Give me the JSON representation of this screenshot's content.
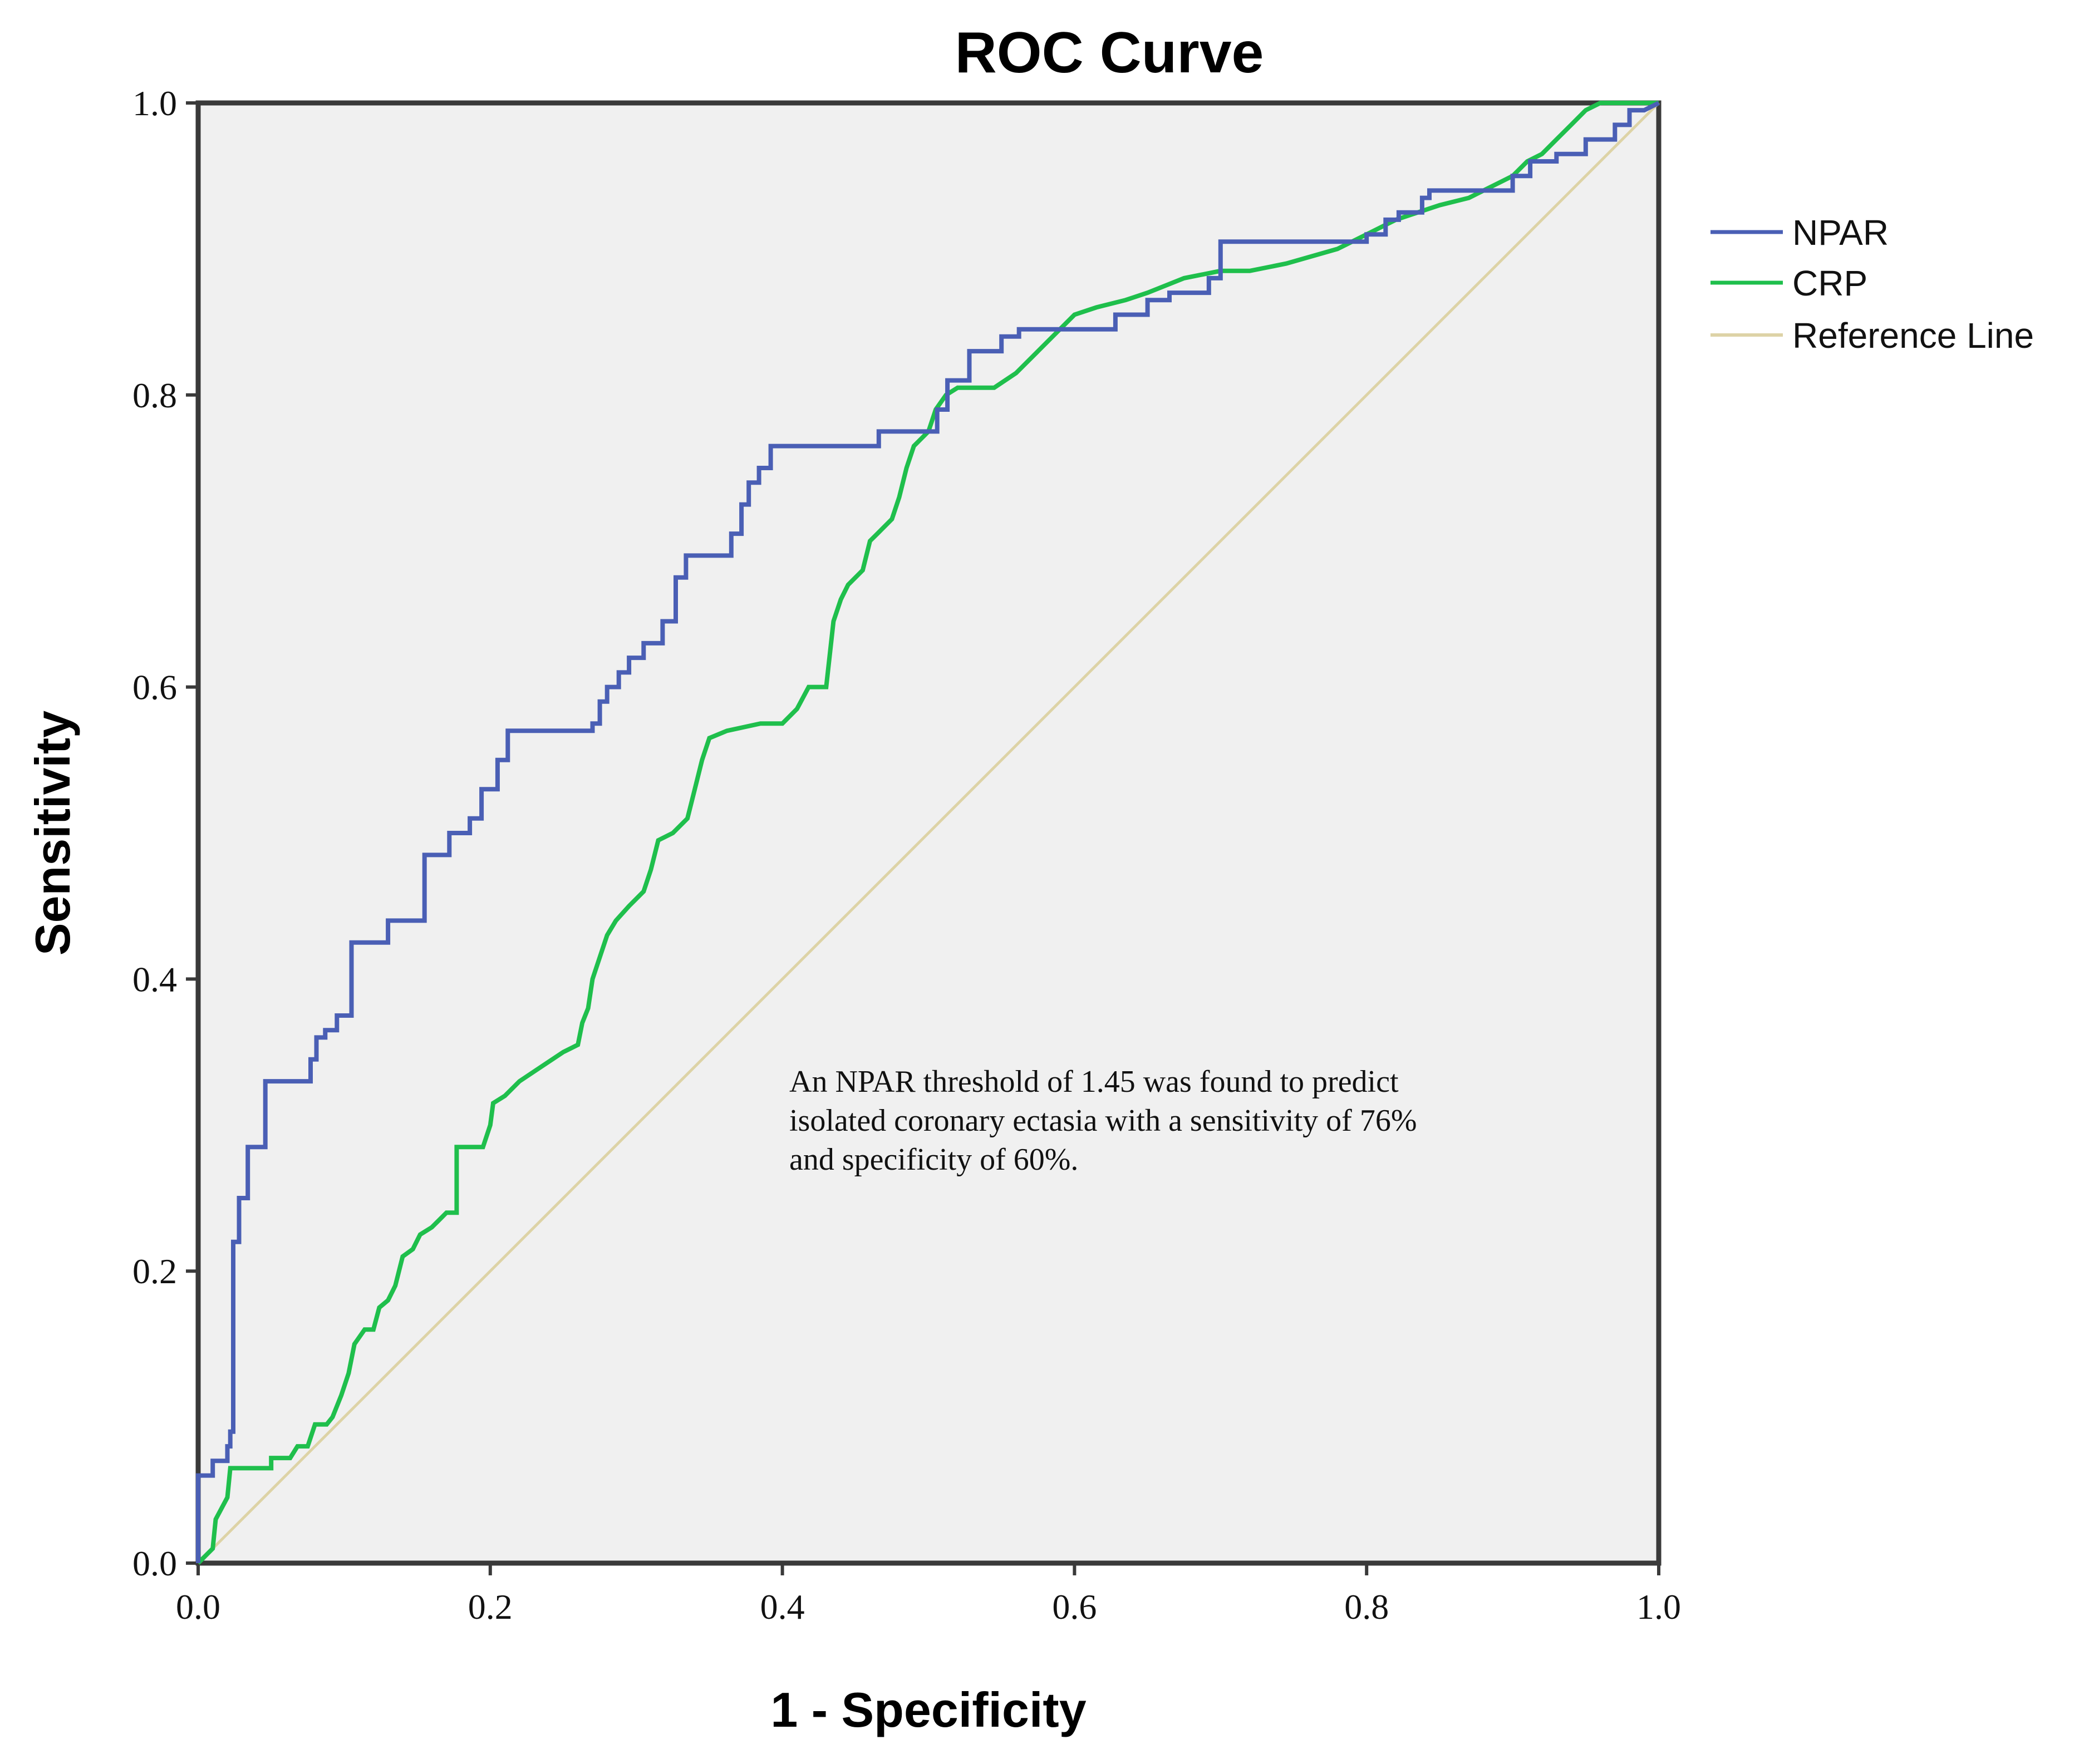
{
  "chart_data": {
    "type": "line",
    "title": "ROC Curve",
    "xlabel": "1 - Specificity",
    "ylabel": "Sensitivity",
    "xlim": [
      0,
      1
    ],
    "ylim": [
      0,
      1
    ],
    "xticks": [
      "0.0",
      "0.2",
      "0.4",
      "0.6",
      "0.8",
      "1.0"
    ],
    "yticks": [
      "0.0",
      "0.2",
      "0.4",
      "0.6",
      "0.8",
      "1.0"
    ],
    "grid": false,
    "legend_position": "right-top",
    "annotation": [
      "An NPAR threshold of 1.45 was found to predict",
      "isolated coronary ectasia with a sensitivity of 76%",
      "and specificity of 60%."
    ],
    "series": [
      {
        "name": "NPAR",
        "color": "#4a5fb5",
        "step": true,
        "points": [
          [
            0,
            0
          ],
          [
            0,
            0.06
          ],
          [
            0.01,
            0.06
          ],
          [
            0.01,
            0.07
          ],
          [
            0.02,
            0.07
          ],
          [
            0.02,
            0.08
          ],
          [
            0.022,
            0.08
          ],
          [
            0.022,
            0.09
          ],
          [
            0.024,
            0.09
          ],
          [
            0.024,
            0.22
          ],
          [
            0.028,
            0.22
          ],
          [
            0.028,
            0.25
          ],
          [
            0.034,
            0.25
          ],
          [
            0.034,
            0.285
          ],
          [
            0.046,
            0.285
          ],
          [
            0.046,
            0.33
          ],
          [
            0.077,
            0.33
          ],
          [
            0.077,
            0.345
          ],
          [
            0.081,
            0.345
          ],
          [
            0.081,
            0.36
          ],
          [
            0.087,
            0.36
          ],
          [
            0.087,
            0.365
          ],
          [
            0.095,
            0.365
          ],
          [
            0.095,
            0.375
          ],
          [
            0.105,
            0.375
          ],
          [
            0.105,
            0.425
          ],
          [
            0.13,
            0.425
          ],
          [
            0.13,
            0.44
          ],
          [
            0.155,
            0.44
          ],
          [
            0.155,
            0.485
          ],
          [
            0.172,
            0.485
          ],
          [
            0.172,
            0.5
          ],
          [
            0.186,
            0.5
          ],
          [
            0.186,
            0.51
          ],
          [
            0.194,
            0.51
          ],
          [
            0.194,
            0.53
          ],
          [
            0.205,
            0.53
          ],
          [
            0.205,
            0.55
          ],
          [
            0.212,
            0.55
          ],
          [
            0.212,
            0.57
          ],
          [
            0.27,
            0.57
          ],
          [
            0.27,
            0.575
          ],
          [
            0.275,
            0.575
          ],
          [
            0.275,
            0.59
          ],
          [
            0.28,
            0.59
          ],
          [
            0.28,
            0.6
          ],
          [
            0.288,
            0.6
          ],
          [
            0.288,
            0.61
          ],
          [
            0.295,
            0.61
          ],
          [
            0.295,
            0.62
          ],
          [
            0.305,
            0.62
          ],
          [
            0.305,
            0.63
          ],
          [
            0.318,
            0.63
          ],
          [
            0.318,
            0.645
          ],
          [
            0.327,
            0.645
          ],
          [
            0.327,
            0.675
          ],
          [
            0.334,
            0.675
          ],
          [
            0.334,
            0.69
          ],
          [
            0.365,
            0.69
          ],
          [
            0.365,
            0.705
          ],
          [
            0.372,
            0.705
          ],
          [
            0.372,
            0.725
          ],
          [
            0.377,
            0.725
          ],
          [
            0.377,
            0.74
          ],
          [
            0.384,
            0.74
          ],
          [
            0.384,
            0.75
          ],
          [
            0.392,
            0.75
          ],
          [
            0.392,
            0.765
          ],
          [
            0.466,
            0.765
          ],
          [
            0.466,
            0.775
          ],
          [
            0.506,
            0.775
          ],
          [
            0.506,
            0.79
          ],
          [
            0.513,
            0.79
          ],
          [
            0.513,
            0.81
          ],
          [
            0.528,
            0.81
          ],
          [
            0.528,
            0.83
          ],
          [
            0.55,
            0.83
          ],
          [
            0.55,
            0.84
          ],
          [
            0.562,
            0.84
          ],
          [
            0.562,
            0.845
          ],
          [
            0.628,
            0.845
          ],
          [
            0.628,
            0.855
          ],
          [
            0.65,
            0.855
          ],
          [
            0.65,
            0.865
          ],
          [
            0.665,
            0.865
          ],
          [
            0.665,
            0.87
          ],
          [
            0.692,
            0.87
          ],
          [
            0.692,
            0.88
          ],
          [
            0.7,
            0.88
          ],
          [
            0.7,
            0.905
          ],
          [
            0.8,
            0.905
          ],
          [
            0.8,
            0.91
          ],
          [
            0.813,
            0.91
          ],
          [
            0.813,
            0.92
          ],
          [
            0.822,
            0.92
          ],
          [
            0.822,
            0.925
          ],
          [
            0.838,
            0.925
          ],
          [
            0.838,
            0.935
          ],
          [
            0.843,
            0.935
          ],
          [
            0.843,
            0.94
          ],
          [
            0.9,
            0.94
          ],
          [
            0.9,
            0.95
          ],
          [
            0.912,
            0.95
          ],
          [
            0.912,
            0.96
          ],
          [
            0.93,
            0.96
          ],
          [
            0.93,
            0.965
          ],
          [
            0.95,
            0.965
          ],
          [
            0.95,
            0.975
          ],
          [
            0.97,
            0.975
          ],
          [
            0.97,
            0.985
          ],
          [
            0.98,
            0.985
          ],
          [
            0.98,
            0.995
          ],
          [
            0.99,
            0.995
          ],
          [
            1.0,
            1.0
          ]
        ]
      },
      {
        "name": "CRP",
        "color": "#1fbf4c",
        "step": false,
        "points": [
          [
            0,
            0
          ],
          [
            0.01,
            0.01
          ],
          [
            0.012,
            0.03
          ],
          [
            0.02,
            0.045
          ],
          [
            0.022,
            0.065
          ],
          [
            0.05,
            0.065
          ],
          [
            0.05,
            0.072
          ],
          [
            0.063,
            0.072
          ],
          [
            0.068,
            0.08
          ],
          [
            0.075,
            0.08
          ],
          [
            0.08,
            0.095
          ],
          [
            0.088,
            0.095
          ],
          [
            0.092,
            0.1
          ],
          [
            0.098,
            0.115
          ],
          [
            0.103,
            0.13
          ],
          [
            0.107,
            0.15
          ],
          [
            0.114,
            0.16
          ],
          [
            0.12,
            0.16
          ],
          [
            0.124,
            0.175
          ],
          [
            0.13,
            0.18
          ],
          [
            0.135,
            0.19
          ],
          [
            0.14,
            0.21
          ],
          [
            0.147,
            0.215
          ],
          [
            0.152,
            0.225
          ],
          [
            0.16,
            0.23
          ],
          [
            0.165,
            0.235
          ],
          [
            0.17,
            0.24
          ],
          [
            0.177,
            0.24
          ],
          [
            0.177,
            0.285
          ],
          [
            0.195,
            0.285
          ],
          [
            0.2,
            0.3
          ],
          [
            0.202,
            0.315
          ],
          [
            0.21,
            0.32
          ],
          [
            0.22,
            0.33
          ],
          [
            0.235,
            0.34
          ],
          [
            0.25,
            0.35
          ],
          [
            0.26,
            0.355
          ],
          [
            0.263,
            0.37
          ],
          [
            0.267,
            0.38
          ],
          [
            0.27,
            0.4
          ],
          [
            0.275,
            0.415
          ],
          [
            0.28,
            0.43
          ],
          [
            0.286,
            0.44
          ],
          [
            0.295,
            0.45
          ],
          [
            0.305,
            0.46
          ],
          [
            0.31,
            0.475
          ],
          [
            0.315,
            0.495
          ],
          [
            0.325,
            0.5
          ],
          [
            0.335,
            0.51
          ],
          [
            0.34,
            0.53
          ],
          [
            0.345,
            0.55
          ],
          [
            0.35,
            0.565
          ],
          [
            0.362,
            0.57
          ],
          [
            0.385,
            0.575
          ],
          [
            0.4,
            0.575
          ],
          [
            0.41,
            0.585
          ],
          [
            0.418,
            0.6
          ],
          [
            0.43,
            0.6
          ],
          [
            0.435,
            0.645
          ],
          [
            0.44,
            0.66
          ],
          [
            0.445,
            0.67
          ],
          [
            0.455,
            0.68
          ],
          [
            0.46,
            0.7
          ],
          [
            0.465,
            0.705
          ],
          [
            0.475,
            0.715
          ],
          [
            0.48,
            0.73
          ],
          [
            0.485,
            0.75
          ],
          [
            0.49,
            0.765
          ],
          [
            0.5,
            0.775
          ],
          [
            0.505,
            0.79
          ],
          [
            0.512,
            0.8
          ],
          [
            0.52,
            0.805
          ],
          [
            0.53,
            0.805
          ],
          [
            0.545,
            0.805
          ],
          [
            0.56,
            0.815
          ],
          [
            0.575,
            0.83
          ],
          [
            0.59,
            0.845
          ],
          [
            0.6,
            0.855
          ],
          [
            0.615,
            0.86
          ],
          [
            0.635,
            0.865
          ],
          [
            0.65,
            0.87
          ],
          [
            0.675,
            0.88
          ],
          [
            0.7,
            0.885
          ],
          [
            0.72,
            0.885
          ],
          [
            0.745,
            0.89
          ],
          [
            0.78,
            0.9
          ],
          [
            0.8,
            0.91
          ],
          [
            0.82,
            0.92
          ],
          [
            0.85,
            0.93
          ],
          [
            0.87,
            0.935
          ],
          [
            0.88,
            0.94
          ],
          [
            0.89,
            0.945
          ],
          [
            0.9,
            0.95
          ],
          [
            0.91,
            0.96
          ],
          [
            0.92,
            0.965
          ],
          [
            0.93,
            0.975
          ],
          [
            0.94,
            0.985
          ],
          [
            0.95,
            0.995
          ],
          [
            0.96,
            1.0
          ],
          [
            1.0,
            1.0
          ]
        ]
      },
      {
        "name": "Reference Line",
        "color": "#ddd3a6",
        "step": false,
        "points": [
          [
            0,
            0
          ],
          [
            1,
            1
          ]
        ]
      }
    ]
  }
}
